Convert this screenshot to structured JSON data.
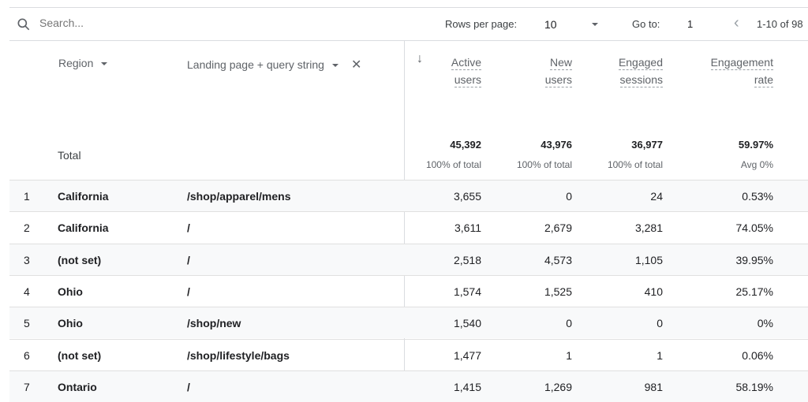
{
  "toolbar": {
    "search_placeholder": "Search...",
    "rows_per_page_label": "Rows per page:",
    "rows_per_page_value": "10",
    "goto_label": "Go to:",
    "goto_value": "1",
    "range": "1-10 of 98"
  },
  "dimensions": {
    "region": "Region",
    "landing": "Landing page + query string"
  },
  "metrics": [
    {
      "line1": "Active",
      "line2": "users",
      "total": "45,392",
      "sub": "100% of total"
    },
    {
      "line1": "New",
      "line2": "users",
      "total": "43,976",
      "sub": "100% of total"
    },
    {
      "line1": "Engaged",
      "line2": "sessions",
      "total": "36,977",
      "sub": "100% of total"
    },
    {
      "line1": "Engagement",
      "line2": "rate",
      "total": "59.97%",
      "sub": "Avg 0%"
    }
  ],
  "total_label": "Total",
  "rows": [
    {
      "n": "1",
      "region": "California",
      "page": "/shop/apparel/mens",
      "v": [
        "3,655",
        "0",
        "24",
        "0.53%"
      ]
    },
    {
      "n": "2",
      "region": "California",
      "page": "/",
      "v": [
        "3,611",
        "2,679",
        "3,281",
        "74.05%"
      ]
    },
    {
      "n": "3",
      "region": "(not set)",
      "page": "/",
      "v": [
        "2,518",
        "4,573",
        "1,105",
        "39.95%"
      ]
    },
    {
      "n": "4",
      "region": "Ohio",
      "page": "/",
      "v": [
        "1,574",
        "1,525",
        "410",
        "25.17%"
      ]
    },
    {
      "n": "5",
      "region": "Ohio",
      "page": "/shop/new",
      "v": [
        "1,540",
        "0",
        "0",
        "0%"
      ]
    },
    {
      "n": "6",
      "region": "(not set)",
      "page": "/shop/lifestyle/bags",
      "v": [
        "1,477",
        "1",
        "1",
        "0.06%"
      ]
    },
    {
      "n": "7",
      "region": "Ontario",
      "page": "/",
      "v": [
        "1,415",
        "1,269",
        "981",
        "58.19%"
      ]
    }
  ]
}
